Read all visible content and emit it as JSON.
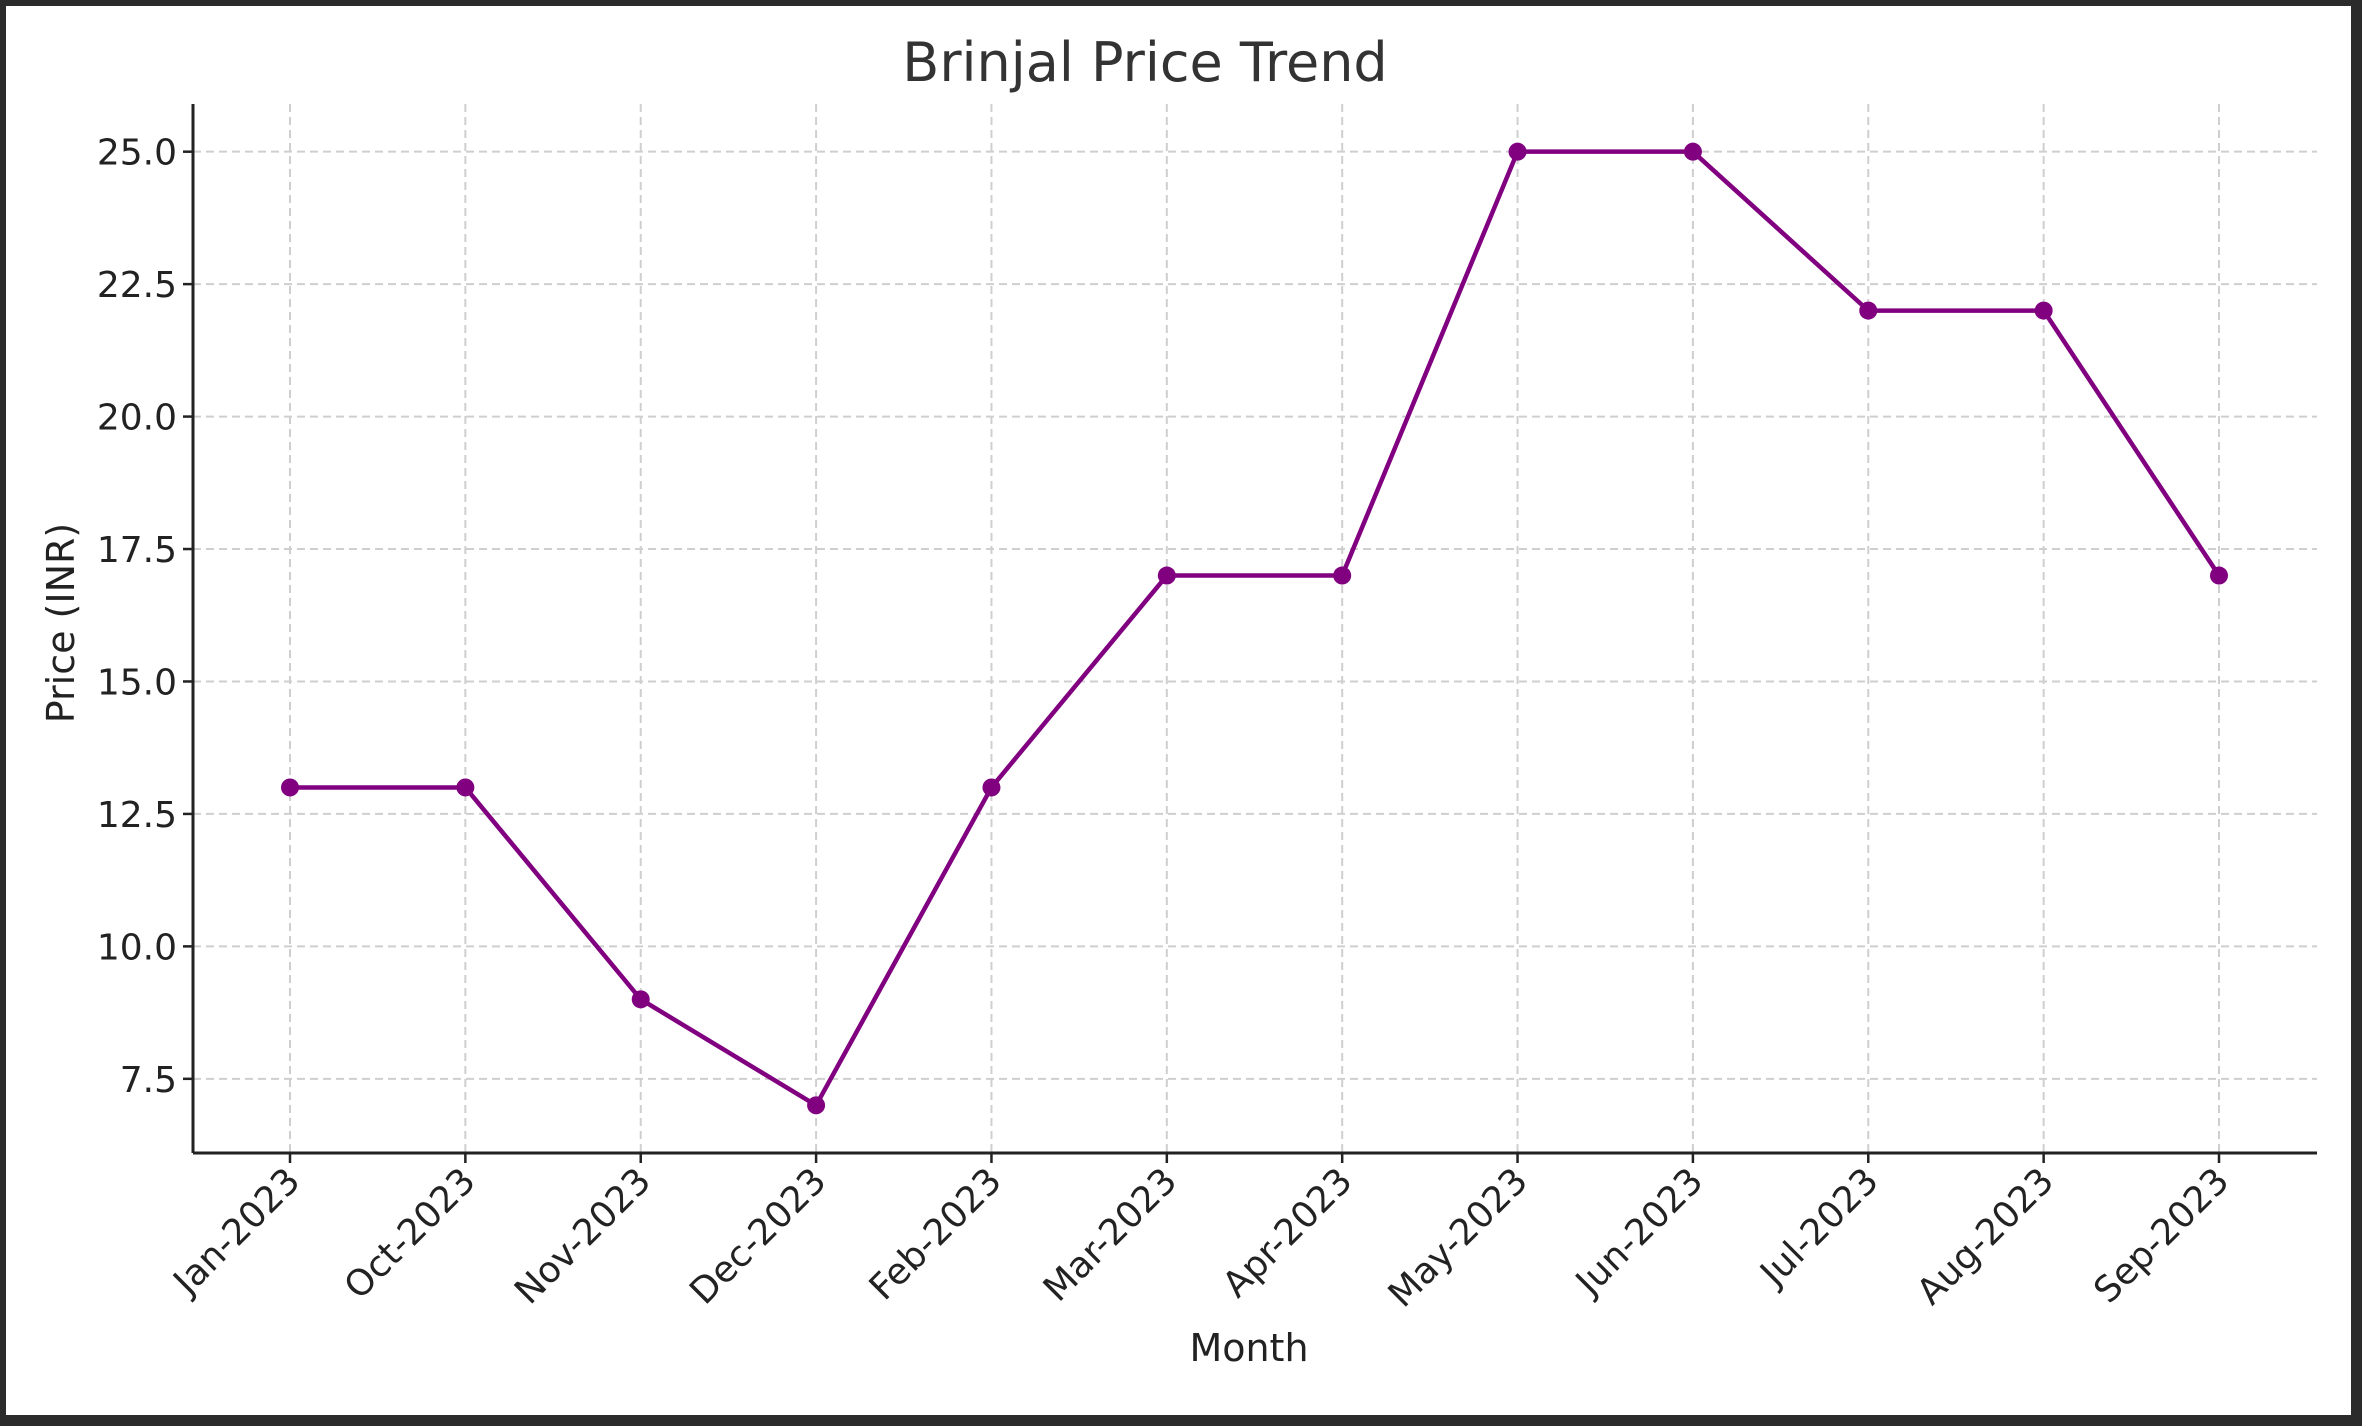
{
  "chart_data": {
    "type": "line",
    "title": "Brinjal Price Trend",
    "xlabel": "Month",
    "ylabel": "Price (INR)",
    "categories": [
      "Jan-2023",
      "Oct-2023",
      "Nov-2023",
      "Dec-2023",
      "Feb-2023",
      "Mar-2023",
      "Apr-2023",
      "May-2023",
      "Jun-2023",
      "Jul-2023",
      "Aug-2023",
      "Sep-2023"
    ],
    "series": [
      {
        "values": [
          13,
          13,
          9,
          7,
          13,
          17,
          17,
          25,
          25,
          22,
          22,
          17
        ],
        "color": "#800080",
        "marker": "circle"
      }
    ],
    "yticks": [
      "7.5",
      "10.0",
      "12.5",
      "15.0",
      "17.5",
      "20.0",
      "22.5",
      "25.0"
    ],
    "ylim": [
      6.1,
      25.9
    ],
    "grid": true,
    "grid_style": "dashed"
  }
}
